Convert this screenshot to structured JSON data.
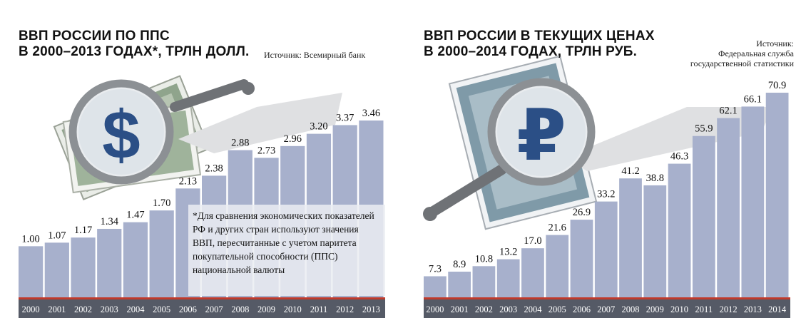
{
  "chart_data": [
    {
      "type": "bar",
      "title_line1": "ВВП РОССИИ ПО ППС",
      "title_line2": "В 2000–2013 ГОДАХ*, ТРЛН ДОЛЛ.",
      "source": "Источник: Всемирный банк",
      "footnote": "*Для сравнения экономических показателей РФ и других стран используют значения ВВП, пересчитанные с учетом паритета покупательной способности (ППС) национальной валюты",
      "icon": "dollar-magnifier-icon",
      "categories": [
        "2000",
        "2001",
        "2002",
        "2003",
        "2004",
        "2005",
        "2006",
        "2007",
        "2008",
        "2009",
        "2010",
        "2011",
        "2012",
        "2013"
      ],
      "values": [
        1.0,
        1.07,
        1.17,
        1.34,
        1.47,
        1.7,
        2.13,
        2.38,
        2.88,
        2.73,
        2.96,
        3.2,
        3.37,
        3.46
      ],
      "labels": [
        "1.00",
        "1.07",
        "1.17",
        "1.34",
        "1.47",
        "1.70",
        "2.13",
        "2.38",
        "2.88",
        "2.73",
        "2.96",
        "3.20",
        "3.37",
        "3.46"
      ],
      "ylim": [
        0,
        3.46
      ],
      "bar_color": "#a7b0cc",
      "baseline_color": "#c0392b",
      "axis_color": "#555a66"
    },
    {
      "type": "bar",
      "title_line1": "ВВП РОССИИ В ТЕКУЩИХ ЦЕНАХ",
      "title_line2": "В 2000–2014 ГОДАХ, ТРЛН РУБ.",
      "source_line1": "Источник:",
      "source_line2": "Федеральная служба",
      "source_line3": "государственной статистики",
      "icon": "ruble-magnifier-icon",
      "categories": [
        "2000",
        "2001",
        "2002",
        "2003",
        "2004",
        "2005",
        "2006",
        "2007",
        "2008",
        "2009",
        "2010",
        "2011",
        "2012",
        "2013",
        "2014"
      ],
      "values": [
        7.3,
        8.9,
        10.8,
        13.2,
        17.0,
        21.6,
        26.9,
        33.2,
        41.2,
        38.8,
        46.3,
        55.9,
        62.1,
        66.1,
        70.9
      ],
      "labels": [
        "7.3",
        "8.9",
        "10.8",
        "13.2",
        "17.0",
        "21.6",
        "26.9",
        "33.2",
        "41.2",
        "38.8",
        "46.3",
        "55.9",
        "62.1",
        "66.1",
        "70.9"
      ],
      "ylim": [
        0,
        70.9
      ],
      "bar_color": "#a7b0cc",
      "baseline_color": "#c0392b",
      "axis_color": "#555a66"
    }
  ]
}
